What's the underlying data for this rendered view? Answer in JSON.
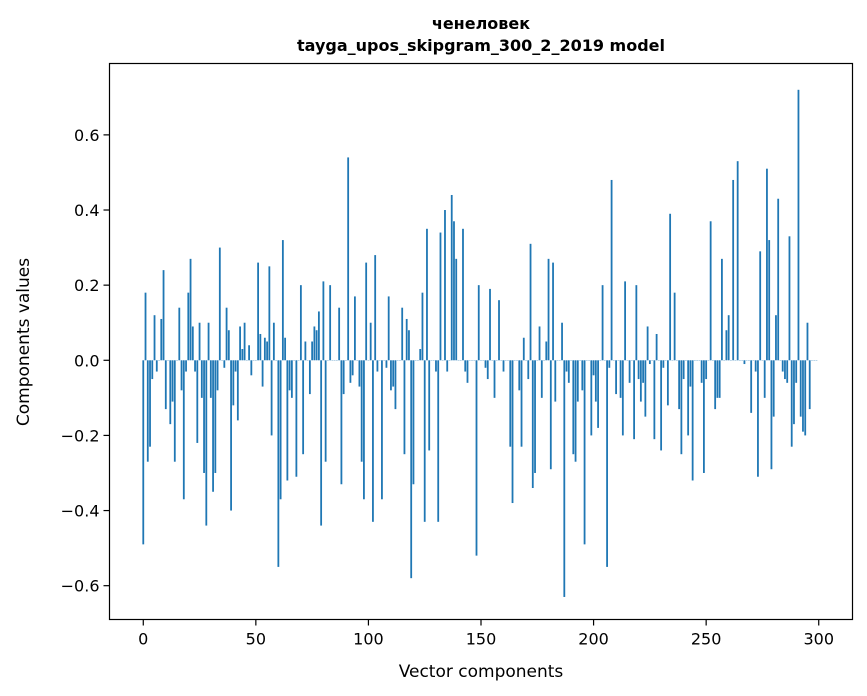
{
  "chart_data": {
    "type": "bar",
    "title": "ченеловек",
    "subtitle": "tayga_upos_skipgram_300_2_2019 model",
    "xlabel": "Vector components",
    "ylabel": "Components values",
    "xlim": [
      -15,
      315
    ],
    "ylim": [
      -0.69,
      0.79
    ],
    "xticks": [
      0,
      50,
      100,
      150,
      200,
      250,
      300
    ],
    "xtick_labels": [
      "0",
      "50",
      "100",
      "150",
      "200",
      "250",
      "300"
    ],
    "yticks": [
      -0.6,
      -0.4,
      -0.2,
      0.0,
      0.2,
      0.4,
      0.6
    ],
    "ytick_labels": [
      "−0.6",
      "−0.4",
      "−0.2",
      "0.0",
      "0.2",
      "0.4",
      "0.6"
    ],
    "grid": false,
    "bar_color": "#1f77b4",
    "values": [
      -0.49,
      0.18,
      -0.27,
      -0.23,
      -0.05,
      0.12,
      -0.03,
      0.0,
      0.11,
      0.24,
      -0.13,
      0.0,
      -0.17,
      -0.11,
      -0.27,
      0.0,
      0.14,
      -0.08,
      -0.37,
      -0.03,
      0.18,
      0.27,
      0.09,
      -0.03,
      -0.22,
      0.1,
      -0.1,
      -0.3,
      -0.44,
      0.1,
      -0.1,
      -0.35,
      -0.3,
      -0.08,
      0.3,
      0.0,
      -0.02,
      0.14,
      0.08,
      -0.4,
      -0.12,
      -0.03,
      -0.16,
      0.09,
      0.03,
      0.1,
      0.0,
      0.04,
      -0.04,
      0.0,
      0.0,
      0.26,
      0.07,
      -0.07,
      0.06,
      0.05,
      0.25,
      -0.2,
      0.1,
      0.0,
      -0.55,
      -0.37,
      0.32,
      0.06,
      -0.32,
      -0.08,
      -0.1,
      0.0,
      -0.31,
      0.0,
      0.2,
      -0.25,
      0.05,
      0.0,
      -0.09,
      0.05,
      0.09,
      0.08,
      0.13,
      -0.44,
      0.21,
      -0.27,
      0.0,
      0.2,
      0.0,
      0.0,
      0.0,
      0.14,
      -0.33,
      -0.09,
      0.0,
      0.54,
      -0.06,
      -0.04,
      0.17,
      0.0,
      -0.07,
      -0.27,
      -0.37,
      0.26,
      0.0,
      0.1,
      -0.43,
      0.28,
      -0.03,
      0.0,
      -0.37,
      0.0,
      -0.02,
      0.17,
      -0.08,
      -0.07,
      -0.13,
      0.0,
      0.0,
      0.14,
      -0.25,
      0.11,
      0.08,
      -0.58,
      -0.33,
      0.0,
      0.0,
      0.03,
      0.18,
      -0.43,
      0.35,
      -0.24,
      0.0,
      0.0,
      -0.03,
      -0.43,
      0.34,
      0.0,
      0.4,
      -0.03,
      0.0,
      0.44,
      0.37,
      0.27,
      0.0,
      0.0,
      0.35,
      -0.03,
      -0.06,
      0.0,
      0.0,
      0.0,
      -0.52,
      0.2,
      0.0,
      0.0,
      -0.02,
      -0.05,
      0.19,
      0.0,
      -0.1,
      0.0,
      0.16,
      0.0,
      -0.03,
      0.0,
      0.0,
      -0.23,
      -0.38,
      0.0,
      0.0,
      -0.08,
      -0.23,
      0.06,
      0.0,
      -0.05,
      0.31,
      -0.34,
      -0.3,
      0.0,
      0.09,
      -0.1,
      0.0,
      0.05,
      0.27,
      -0.29,
      0.26,
      -0.11,
      0.0,
      0.0,
      0.1,
      -0.63,
      -0.03,
      -0.06,
      0.0,
      -0.25,
      -0.27,
      -0.11,
      0.0,
      -0.08,
      -0.49,
      0.0,
      0.0,
      -0.2,
      -0.04,
      -0.11,
      -0.18,
      0.0,
      0.2,
      0.0,
      -0.55,
      -0.02,
      0.48,
      0.0,
      -0.09,
      0.0,
      -0.1,
      -0.2,
      0.21,
      0.0,
      -0.06,
      0.0,
      -0.21,
      0.2,
      -0.05,
      -0.11,
      -0.06,
      -0.15,
      0.09,
      -0.01,
      0.0,
      -0.21,
      0.07,
      0.0,
      -0.24,
      -0.02,
      0.0,
      -0.12,
      0.39,
      0.0,
      0.18,
      0.0,
      -0.13,
      -0.25,
      -0.05,
      0.0,
      -0.2,
      -0.07,
      -0.32,
      0.0,
      0.0,
      0.0,
      -0.06,
      -0.3,
      -0.05,
      0.0,
      0.37,
      0.0,
      -0.13,
      -0.1,
      -0.1,
      0.27,
      0.0,
      0.08,
      0.12,
      0.0,
      0.48,
      0.0,
      0.53,
      0.0,
      0.0,
      -0.01,
      0.0,
      0.0,
      -0.14,
      0.0,
      -0.03,
      -0.31,
      0.29,
      0.0,
      -0.1,
      0.51,
      0.32,
      -0.29,
      -0.15,
      0.12,
      0.43,
      0.0,
      -0.03,
      -0.05,
      -0.06,
      0.33,
      -0.23,
      -0.17,
      -0.06,
      0.72,
      -0.15,
      -0.19,
      -0.2,
      0.1,
      -0.13,
      0.0,
      0.0,
      0.0
    ]
  }
}
